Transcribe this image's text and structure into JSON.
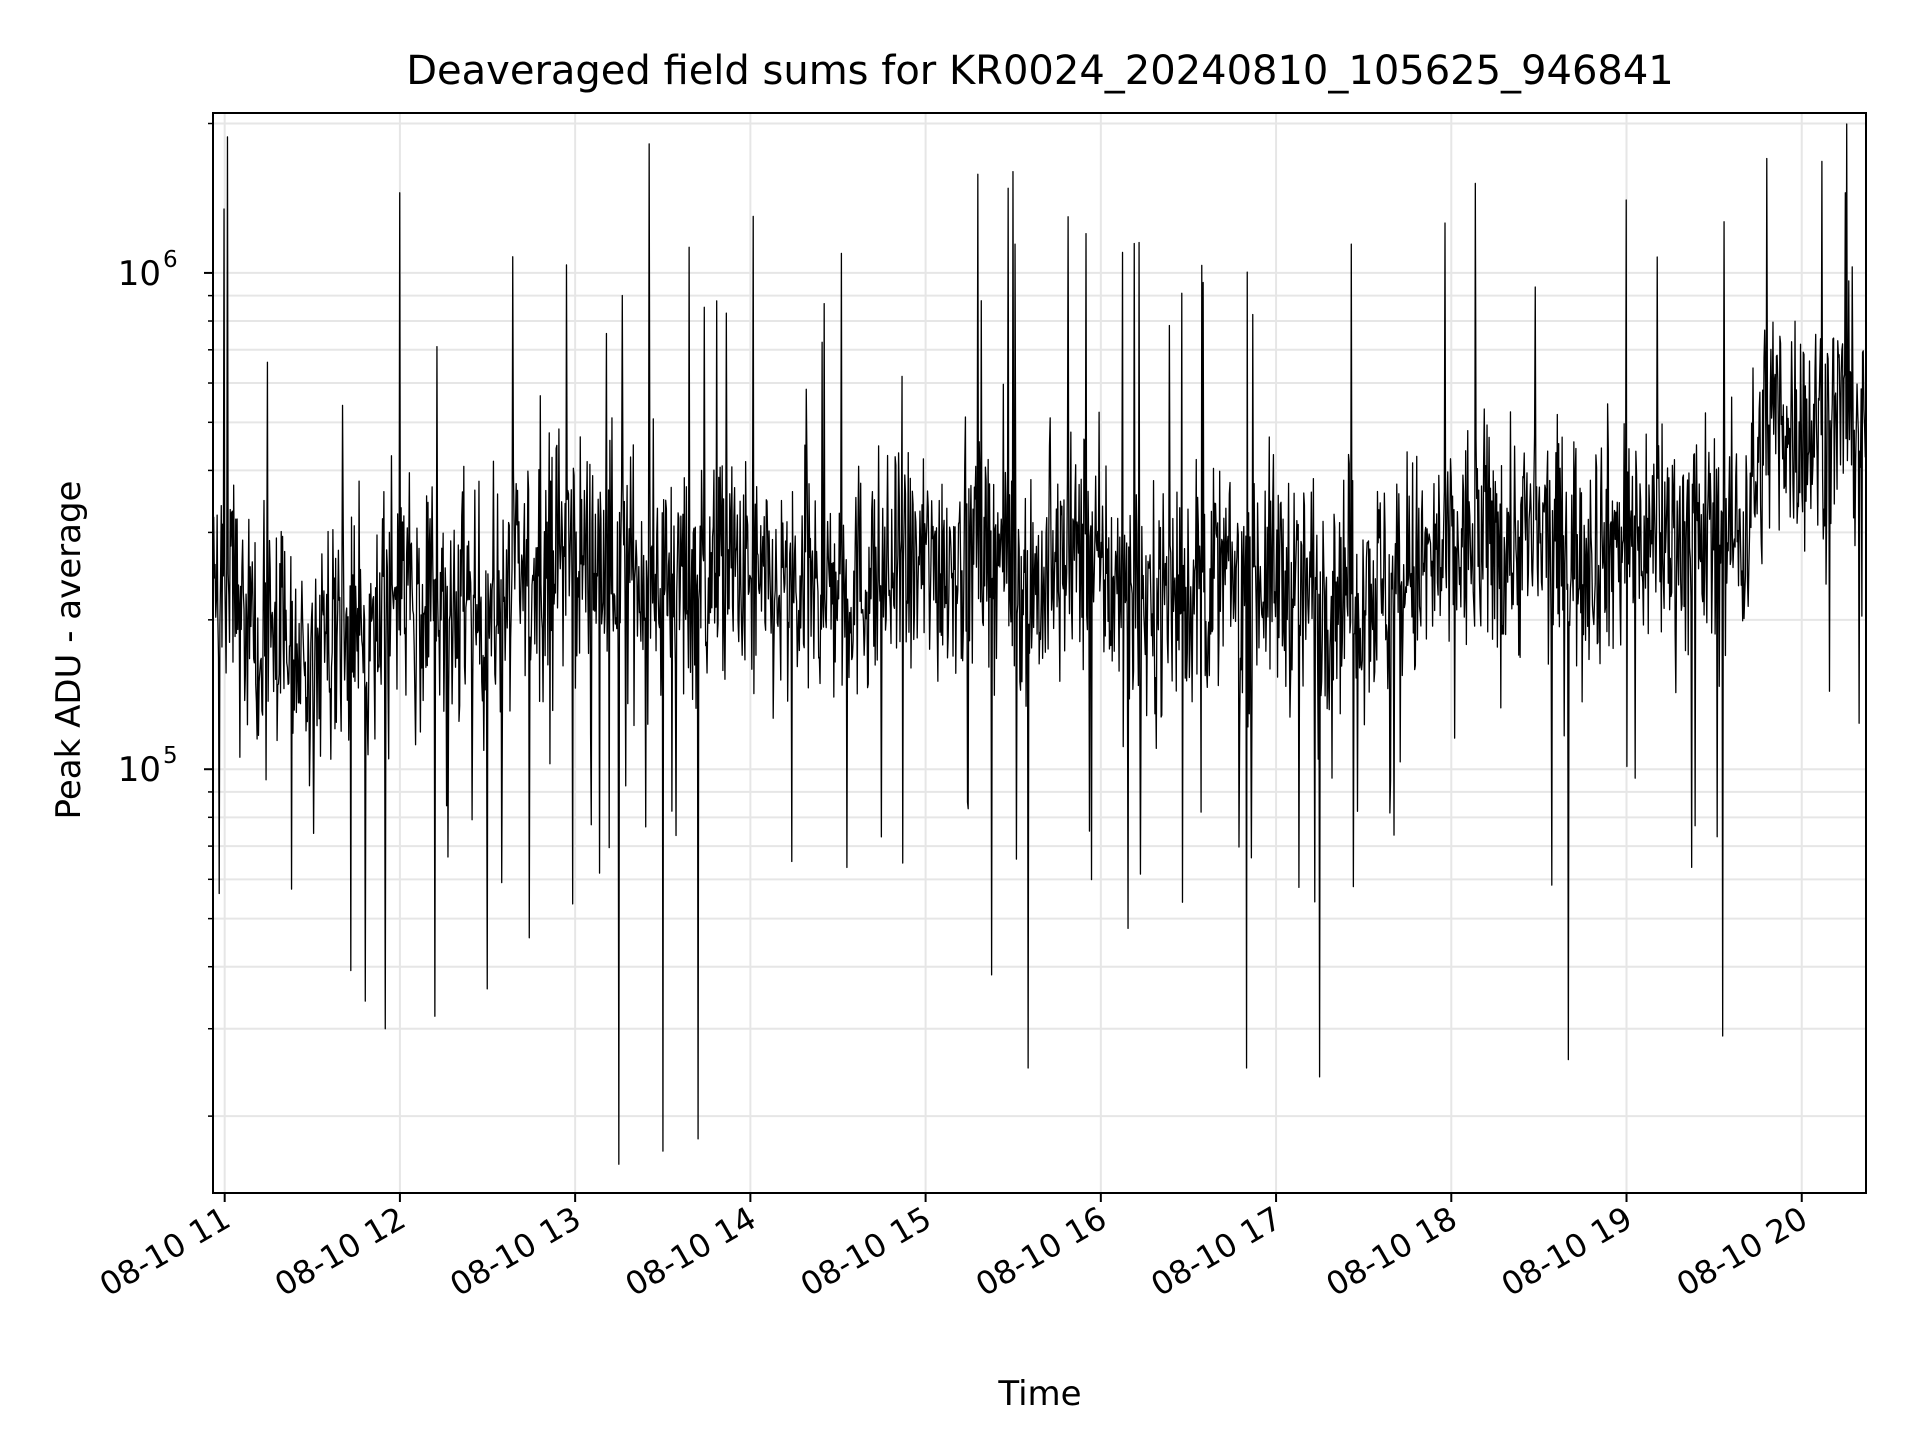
{
  "chart_data": {
    "type": "line",
    "title": "Deaveraged field sums for KR0024_20240810_105625_946841",
    "xlabel": "Time",
    "ylabel": "Peak ADU - average",
    "yscale": "log",
    "ylim": [
      14000,
      2100000
    ],
    "xlim": [
      "2024-08-10 10:56",
      "2024-08-10 20:22"
    ],
    "x_tick_labels": [
      "08-10 11",
      "08-10 12",
      "08-10 13",
      "08-10 14",
      "08-10 15",
      "08-10 16",
      "08-10 17",
      "08-10 18",
      "08-10 19",
      "08-10 20"
    ],
    "y_tick_labels": [
      {
        "base": "10",
        "exp": "5",
        "value": 100000
      },
      {
        "base": "10",
        "exp": "6",
        "value": 1000000
      }
    ],
    "grid": true,
    "legend": "none",
    "line_color": "#000000",
    "series": [
      {
        "x": [
          "2024-08-10 10:56",
          "2024-08-10 11:10",
          "2024-08-10 11:25",
          "2024-08-10 11:40",
          "2024-08-10 11:55",
          "2024-08-10 12:00",
          "2024-08-10 12:10",
          "2024-08-10 12:25",
          "2024-08-10 12:40",
          "2024-08-10 12:55",
          "2024-08-10 13:10",
          "2024-08-10 13:25",
          "2024-08-10 13:40",
          "2024-08-10 13:55",
          "2024-08-10 14:00",
          "2024-08-10 14:10",
          "2024-08-10 14:25",
          "2024-08-10 14:40",
          "2024-08-10 14:55",
          "2024-08-10 15:10",
          "2024-08-10 15:25",
          "2024-08-10 15:40",
          "2024-08-10 15:55",
          "2024-08-10 16:10",
          "2024-08-10 16:25",
          "2024-08-10 16:40",
          "2024-08-10 16:55",
          "2024-08-10 17:10",
          "2024-08-10 17:25",
          "2024-08-10 17:40",
          "2024-08-10 17:55",
          "2024-08-10 18:10",
          "2024-08-10 18:25",
          "2024-08-10 18:40",
          "2024-08-10 18:55",
          "2024-08-10 19:10",
          "2024-08-10 19:25",
          "2024-08-10 19:40",
          "2024-08-10 19:50",
          "2024-08-10 20:00",
          "2024-08-10 20:10",
          "2024-08-10 20:22"
        ],
        "values": [
          300000,
          180000,
          170000,
          180000,
          210000,
          230000,
          210000,
          200000,
          230000,
          280000,
          260000,
          250000,
          240000,
          250000,
          230000,
          220000,
          230000,
          240000,
          250000,
          270000,
          280000,
          230000,
          280000,
          210000,
          230000,
          240000,
          250000,
          230000,
          240000,
          230000,
          260000,
          290000,
          290000,
          280000,
          290000,
          300000,
          290000,
          300000,
          550000,
          480000,
          500000,
          540000
        ],
        "peaks_max": [
          {
            "x": "2024-08-10 12:00",
            "value": 1450000
          },
          {
            "x": "2024-08-10 14:01",
            "value": 1300000
          },
          {
            "x": "2024-08-10 15:30",
            "value": 1600000
          },
          {
            "x": "2024-08-10 15:55",
            "value": 1200000
          },
          {
            "x": "2024-08-10 19:48",
            "value": 1700000
          },
          {
            "x": "2024-08-10 20:15",
            "value": 1450000
          }
        ],
        "troughs_min": [
          {
            "x": "2024-08-10 11:55",
            "value": 30000
          },
          {
            "x": "2024-08-10 13:15",
            "value": 16000
          },
          {
            "x": "2024-08-10 13:30",
            "value": 17000
          },
          {
            "x": "2024-08-10 13:42",
            "value": 18000
          },
          {
            "x": "2024-08-10 15:35",
            "value": 25000
          },
          {
            "x": "2024-08-10 16:50",
            "value": 25000
          },
          {
            "x": "2024-08-10 17:15",
            "value": 24000
          },
          {
            "x": "2024-08-10 18:40",
            "value": 26000
          },
          {
            "x": "2024-08-10 19:33",
            "value": 29000
          }
        ]
      }
    ]
  }
}
